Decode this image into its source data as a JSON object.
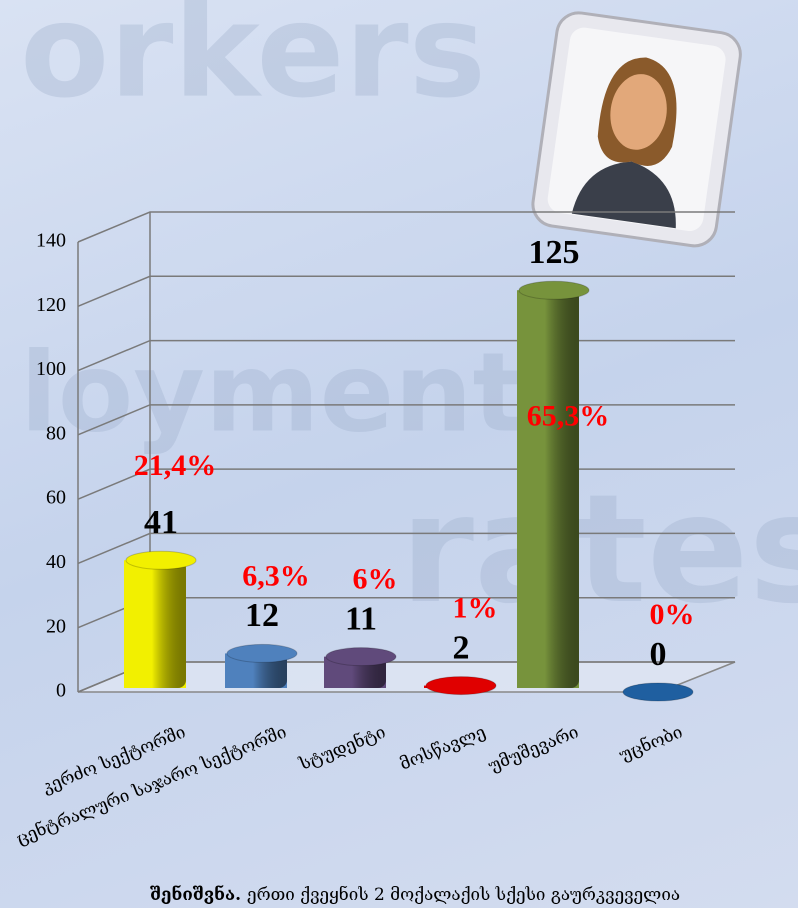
{
  "chart_data": {
    "type": "bar3d",
    "categories": [
      "კერძო სექტორში",
      "ცენტრალური საჯარო სექტორში",
      "სტუდენტი",
      "მოსწავლე",
      "უმუშევარი",
      "უცნობი"
    ],
    "values": [
      41,
      12,
      11,
      2,
      125,
      0
    ],
    "colors": [
      "#f2f000",
      "#4f81bd",
      "#604a7b",
      "#e00000",
      "#77933c",
      "#1f5fa0"
    ],
    "shares": {
      "values": [
        21.4,
        6.3,
        6,
        1,
        65.3,
        0
      ],
      "value_labels": [
        "21,4%",
        "6,3%",
        "6%",
        "1%",
        "65,3%",
        "0%"
      ]
    },
    "ylim": [
      0,
      140
    ],
    "yticks": [
      0,
      20,
      40,
      60,
      80,
      100,
      120,
      140
    ],
    "grid": true
  },
  "note": {
    "label": "შენიშვნა.",
    "text": "ერთი ქვეყნის 2 მოქალაქის სქესი გაურკვეველია"
  }
}
